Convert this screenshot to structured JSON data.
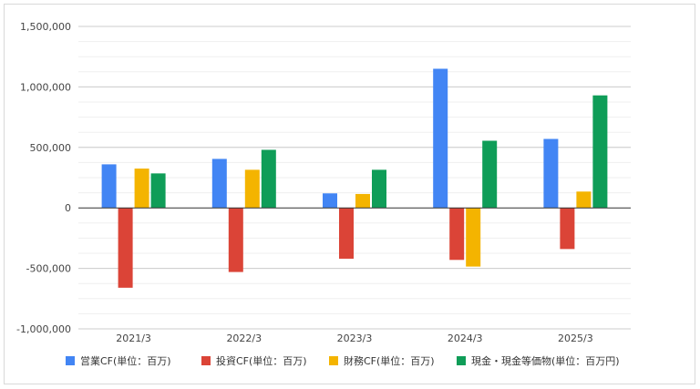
{
  "chart_data": {
    "type": "bar",
    "title": "",
    "xlabel": "",
    "ylabel": "",
    "categories": [
      "2021/3",
      "2022/3",
      "2023/3",
      "2024/3",
      "2025/3"
    ],
    "ylim": [
      -1000000,
      1500000
    ],
    "yticks": [
      {
        "value": 1500000,
        "label": "1,500,000"
      },
      {
        "value": 1000000,
        "label": "1,000,000"
      },
      {
        "value": 500000,
        "label": "500,000"
      },
      {
        "value": 0,
        "label": "0"
      },
      {
        "value": -500000,
        "label": "-500,000"
      },
      {
        "value": -1000000,
        "label": "-1,000,000"
      }
    ],
    "minor_grid_step": 125000,
    "grid": true,
    "legend_position": "bottom",
    "series": [
      {
        "name": "営業CF(単位：百万)",
        "color": "#4285f4",
        "values": [
          360000,
          405000,
          120000,
          1150000,
          570000
        ]
      },
      {
        "name": "投資CF(単位：百万)",
        "color": "#db4437",
        "values": [
          -660000,
          -530000,
          -420000,
          -430000,
          -340000
        ]
      },
      {
        "name": "財務CF(単位：百万)",
        "color": "#f4b400",
        "values": [
          325000,
          315000,
          115000,
          -485000,
          135000
        ]
      },
      {
        "name": "現金・現金等価物(単位：百万円)",
        "color": "#0f9d58",
        "values": [
          285000,
          480000,
          315000,
          555000,
          930000
        ]
      }
    ]
  }
}
